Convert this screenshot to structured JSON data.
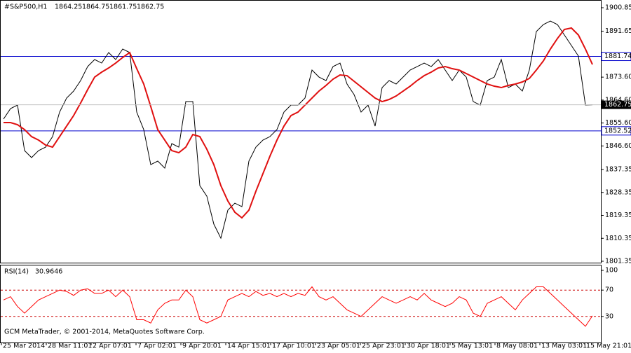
{
  "chart_data": [
    {
      "type": "line",
      "title": "#S&P500,H1",
      "ohlc": [
        1864.25,
        1864.75,
        1861.75,
        1862.75
      ],
      "ylim": [
        1800.8,
        1903.05
      ],
      "yticks": [
        1900.85,
        1891.65,
        {
          "value": 1873.6,
          "label": "1873.60"
        },
        {
          "value": 1864.6,
          "label": "1864.60"
        },
        {
          "value": 1855.6,
          "label": "1855.60"
        },
        {
          "value": 1846.6,
          "label": "1846.60"
        },
        1837.35,
        1828.35,
        1819.35,
        1810.35,
        1801.35
      ],
      "levels": [
        1881.74,
        1852.52
      ],
      "level_color": "#0000cc",
      "series": [
        {
          "name": "#S&P500,H1",
          "color": "#000000",
          "values": [
            1857.14,
            1861.26,
            1862.64,
            1844.77,
            1842.02,
            1844.77,
            1846.14,
            1850.27,
            1859.89,
            1865.39,
            1868.14,
            1872.26,
            1877.76,
            1880.51,
            1879.13,
            1883.26,
            1880.51,
            1884.63,
            1883.26,
            1859.89,
            1853.02,
            1839.27,
            1840.65,
            1837.9,
            1847.52,
            1846.14,
            1864.01,
            1864.01,
            1831.03,
            1826.9,
            1815.91,
            1810.41,
            1821.4,
            1824.15,
            1822.78,
            1840.65,
            1846.14,
            1848.89,
            1850.27,
            1853.02,
            1859.89,
            1862.64,
            1862.64,
            1865.39,
            1876.38,
            1873.63,
            1872.26,
            1877.76,
            1879.13,
            1870.89,
            1866.76,
            1859.89,
            1862.64,
            1854.39,
            1869.51,
            1872.26,
            1870.89,
            1873.63,
            1876.38,
            1877.76,
            1879.13,
            1877.76,
            1880.51,
            1876.38,
            1872.26,
            1876.38,
            1873.63,
            1864.01,
            1862.64,
            1872.26,
            1873.63,
            1880.51,
            1869.51,
            1870.89,
            1868.14,
            1876.38,
            1891.5,
            1894.25,
            1895.63,
            1894.25,
            1890.13,
            1886.01,
            1881.88,
            1862.64,
            1862.75
          ]
        },
        {
          "name": "MA",
          "color": "#e01010",
          "values": [
            1855.77,
            1855.77,
            1854.94,
            1853.02,
            1850.27,
            1848.89,
            1846.97,
            1846.14,
            1850.27,
            1854.39,
            1858.52,
            1863.46,
            1868.69,
            1873.63,
            1875.56,
            1877.21,
            1879.13,
            1881.33,
            1883.26,
            1876.93,
            1870.89,
            1862.09,
            1853.02,
            1848.89,
            1844.77,
            1843.95,
            1846.14,
            1851.09,
            1850.27,
            1845.32,
            1839.27,
            1831.03,
            1824.98,
            1820.58,
            1818.38,
            1821.4,
            1828.83,
            1835.7,
            1842.57,
            1848.89,
            1854.39,
            1858.52,
            1859.89,
            1862.64,
            1865.39,
            1868.14,
            1870.34,
            1872.81,
            1874.46,
            1874.18,
            1871.99,
            1869.79,
            1867.59,
            1865.39,
            1864.01,
            1864.84,
            1866.21,
            1868.14,
            1870.06,
            1872.26,
            1874.18,
            1875.56,
            1877.21,
            1877.76,
            1876.93,
            1876.38,
            1875.01,
            1873.63,
            1872.26,
            1870.89,
            1870.06,
            1869.51,
            1870.34,
            1870.89,
            1871.71,
            1873.09,
            1876.38,
            1879.96,
            1884.63,
            1888.75,
            1892.33,
            1892.88,
            1890.13,
            1884.63,
            1878.58
          ]
        }
      ]
    },
    {
      "type": "line",
      "title": "RSI(14)",
      "ylim": [
        0,
        100
      ],
      "yticks": [
        100,
        70,
        30
      ],
      "levels": [
        70,
        30
      ],
      "level_color": "#cc0000",
      "xticks": [
        "25 Mar 2014",
        "28 Mar 11:01",
        "2 Apr 07:01",
        "7 Apr 02:01",
        "9 Apr 20:01",
        "14 Apr 15:01",
        "17 Apr 10:01",
        "23 Apr 05:01",
        "25 Apr 23:01",
        "30 Apr 18:01",
        "5 May 13:01",
        "8 May 08:01",
        "13 May 03:01",
        "15 May 21:01"
      ],
      "footer": "GCM MetaTrader, © 2001-2014, MetaQuotes Software Corp.",
      "series": [
        {
          "name": "RSI(14)",
          "color": "#ff0000",
          "values": [
            55,
            60,
            45,
            35,
            45,
            55,
            60,
            65,
            70,
            68,
            62,
            70,
            72,
            65,
            65,
            70,
            60,
            70,
            60,
            25,
            25,
            20,
            40,
            50,
            55,
            55,
            70,
            60,
            25,
            20,
            25,
            30,
            55,
            60,
            65,
            60,
            68,
            62,
            65,
            60,
            65,
            60,
            65,
            62,
            75,
            60,
            55,
            60,
            50,
            40,
            35,
            30,
            40,
            50,
            60,
            55,
            50,
            55,
            60,
            55,
            65,
            55,
            50,
            45,
            50,
            60,
            55,
            35,
            30,
            50,
            55,
            60,
            50,
            40,
            55,
            65,
            75,
            75,
            65,
            55,
            45,
            35,
            25,
            15,
            30.9646
          ]
        }
      ]
    }
  ]
}
